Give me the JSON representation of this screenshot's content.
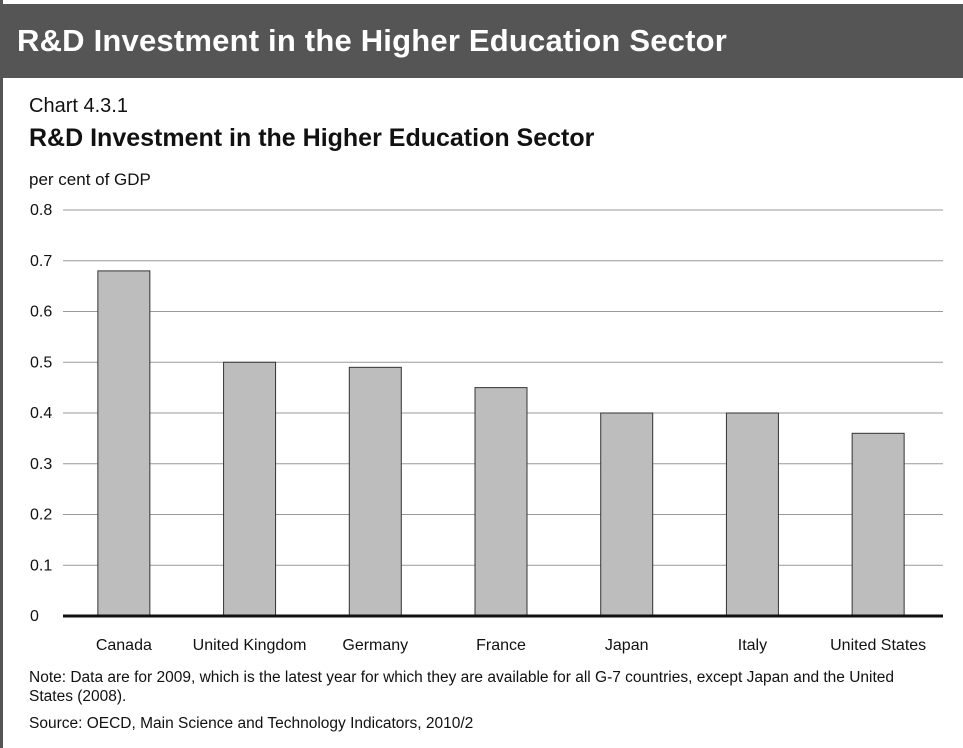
{
  "banner": {
    "title": "R&D Investment in the Higher Education Sector"
  },
  "colors": {
    "banner_bg": "#555555",
    "bar_fill": "#bdbdbd",
    "bar_stroke": "#333333",
    "gridline": "#9a9a9a",
    "axis": "#111111"
  },
  "chart_data": {
    "type": "bar",
    "chart_number": "Chart 4.3.1",
    "title": "R&D Investment in the Higher Education Sector",
    "ylabel": "per cent of GDP",
    "xlabel": "",
    "ylim": [
      0,
      0.8
    ],
    "yticks": [
      "0",
      "0.1",
      "0.2",
      "0.3",
      "0.4",
      "0.5",
      "0.6",
      "0.7",
      "0.8"
    ],
    "grid": true,
    "categories": [
      "Canada",
      "United Kingdom",
      "Germany",
      "France",
      "Japan",
      "Italy",
      "United States"
    ],
    "values": [
      0.68,
      0.5,
      0.49,
      0.45,
      0.4,
      0.4,
      0.36
    ]
  },
  "footer": {
    "note": "Note: Data are for 2009, which is the latest year for which they are available for all G-7 countries, except Japan and the United States (2008).",
    "source": "Source: OECD, Main Science and Technology Indicators, 2010/2"
  }
}
